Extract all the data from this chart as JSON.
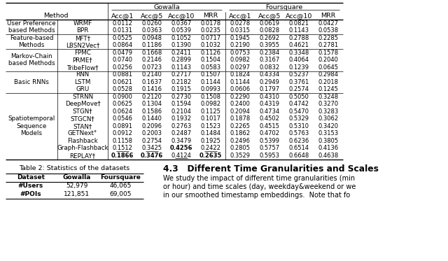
{
  "main_table": {
    "row_groups": [
      {
        "group": "User Preference\nbased Methods",
        "rows": [
          {
            "method": "WRMF",
            "gowalla": [
              "0.0112",
              "0.0260",
              "0.0367",
              "0.0178"
            ],
            "foursquare": [
              "0.0278",
              "0.0619",
              "0.0821",
              "0.0427"
            ],
            "bold": [],
            "underline": []
          },
          {
            "method": "BPR",
            "gowalla": [
              "0.0131",
              "0.0363",
              "0.0539",
              "0.0235"
            ],
            "foursquare": [
              "0.0315",
              "0.0828",
              "0.1143",
              "0.0538"
            ],
            "bold": [],
            "underline": []
          }
        ]
      },
      {
        "group": "Feature-based\nMethods",
        "rows": [
          {
            "method": "MFT†",
            "gowalla": [
              "0.0525",
              "0.0948",
              "0.1052",
              "0.0717"
            ],
            "foursquare": [
              "0.1945",
              "0.2692",
              "0.2788",
              "0.2285"
            ],
            "bold": [],
            "underline": []
          },
          {
            "method": "LBSN2Vec†",
            "gowalla": [
              "0.0864",
              "0.1186",
              "0.1390",
              "0.1032"
            ],
            "foursquare": [
              "0.2190",
              "0.3955",
              "0.4621",
              "0.2781"
            ],
            "bold": [],
            "underline": []
          }
        ]
      },
      {
        "group": "Markov-Chain\nbased Methods",
        "rows": [
          {
            "method": "FPMC",
            "gowalla": [
              "0.0479",
              "0.1668",
              "0.2411",
              "0.1126"
            ],
            "foursquare": [
              "0.0753",
              "0.2384",
              "0.3348",
              "0.1578"
            ],
            "bold": [],
            "underline": []
          },
          {
            "method": "PRME†",
            "gowalla": [
              "0.0740",
              "0.2146",
              "0.2899",
              "0.1504"
            ],
            "foursquare": [
              "0.0982",
              "0.3167",
              "0.4064",
              "0.2040"
            ],
            "bold": [],
            "underline": []
          },
          {
            "method": "TribeFlow†",
            "gowalla": [
              "0.0256",
              "0.0723",
              "0.1143",
              "0.0583"
            ],
            "foursquare": [
              "0.0297",
              "0.0832",
              "0.1239",
              "0.0645"
            ],
            "bold": [],
            "underline": []
          }
        ]
      },
      {
        "group": "Basic RNNs",
        "rows": [
          {
            "method": "RNN",
            "gowalla": [
              "0.0881",
              "0.2140",
              "0.2717",
              "0.1507"
            ],
            "foursquare": [
              "0.1824",
              "0.4334",
              "0.5237",
              "0.2984"
            ],
            "bold": [],
            "underline": []
          },
          {
            "method": "LSTM",
            "gowalla": [
              "0.0621",
              "0.1637",
              "0.2182",
              "0.1144"
            ],
            "foursquare": [
              "0.1144",
              "0.2949",
              "0.3761",
              "0.2018"
            ],
            "bold": [],
            "underline": []
          },
          {
            "method": "GRU",
            "gowalla": [
              "0.0528",
              "0.1416",
              "0.1915",
              "0.0993"
            ],
            "foursquare": [
              "0.0606",
              "0.1797",
              "0.2574",
              "0.1245"
            ],
            "bold": [],
            "underline": []
          }
        ]
      },
      {
        "group": "Spatiotemporal\nSequence\nModels",
        "rows": [
          {
            "method": "STRNN",
            "gowalla": [
              "0.0900",
              "0.2120",
              "0.2730",
              "0.1508"
            ],
            "foursquare": [
              "0.2290",
              "0.4310",
              "0.5050",
              "0.3248"
            ],
            "bold": [],
            "underline": []
          },
          {
            "method": "DeepMove†",
            "gowalla": [
              "0.0625",
              "0.1304",
              "0.1594",
              "0.0982"
            ],
            "foursquare": [
              "0.2400",
              "0.4319",
              "0.4742",
              "0.3270"
            ],
            "bold": [],
            "underline": []
          },
          {
            "method": "STGN†",
            "gowalla": [
              "0.0624",
              "0.1586",
              "0.2104",
              "0.1125"
            ],
            "foursquare": [
              "0.2094",
              "0.4734",
              "0.5470",
              "0.3283"
            ],
            "bold": [],
            "underline": []
          },
          {
            "method": "STGCN†",
            "gowalla": [
              "0.0546",
              "0.1440",
              "0.1932",
              "0.1017"
            ],
            "foursquare": [
              "0.1878",
              "0.4502",
              "0.5329",
              "0.3062"
            ],
            "bold": [],
            "underline": []
          },
          {
            "method": "STAN†",
            "gowalla": [
              "0.0891",
              "0.2096",
              "0.2763",
              "0.1523"
            ],
            "foursquare": [
              "0.2265",
              "0.4515",
              "0.5310",
              "0.3420"
            ],
            "bold": [],
            "underline": []
          },
          {
            "method": "GETNext°",
            "gowalla": [
              "0.0912",
              "0.2003",
              "0.2487",
              "0.1484"
            ],
            "foursquare": [
              "0.1862",
              "0.4702",
              "0.5763",
              "0.3153"
            ],
            "bold": [],
            "underline": []
          },
          {
            "method": "Flashback",
            "gowalla": [
              "0.1158",
              "0.2754",
              "0.3479",
              "0.1925"
            ],
            "foursquare": [
              "0.2496",
              "0.5399",
              "0.6236",
              "0.3805"
            ],
            "bold": [],
            "underline": []
          },
          {
            "method": "Graph-Flashback",
            "gowalla": [
              "0.1512",
              "0.3425",
              "0.4256",
              "0.2422"
            ],
            "foursquare": [
              "0.2805",
              "0.5757",
              "0.6514",
              "0.4136"
            ],
            "bold": [
              2
            ],
            "underline": [
              0,
              1,
              3
            ]
          },
          {
            "method": "REPLAY†",
            "gowalla": [
              "0.1866",
              "0.3476",
              "0.4124",
              "0.2635"
            ],
            "foursquare": [
              "0.3529",
              "0.5953",
              "0.6648",
              "0.4638"
            ],
            "bold": [
              0,
              1,
              3
            ],
            "underline": [
              2
            ]
          }
        ]
      }
    ]
  },
  "table2": {
    "title": "Table 2: Statistics of the datasets",
    "headers": [
      "Dataset",
      "Gowalla",
      "Foursquare"
    ],
    "rows": [
      [
        "#Users",
        "52,979",
        "46,065"
      ],
      [
        "#POIs",
        "121,851",
        "69,005"
      ]
    ]
  },
  "section_title": "4.3   Different Time Granularities and Scales",
  "section_lines": [
    "We study the impact of different time granularities (min",
    "or hour) and time scales (day, weekday&weekend or we",
    "in our smoothed timestamp embeddings.  Note that fo"
  ]
}
